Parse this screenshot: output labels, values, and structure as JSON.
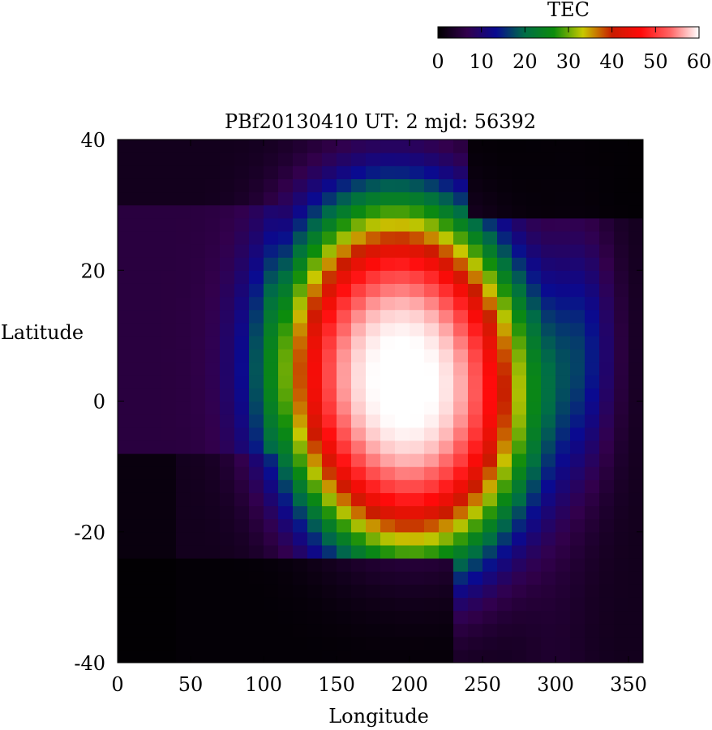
{
  "chart_data": {
    "type": "heatmap",
    "title": "PBf20130410  UT: 2  mjd: 56392",
    "xlabel": "Longitude",
    "ylabel": "Latitude",
    "xlim": [
      0,
      360
    ],
    "ylim": [
      -40,
      40
    ],
    "x_ticks": [
      0,
      50,
      100,
      150,
      200,
      250,
      300,
      350
    ],
    "y_ticks": [
      -40,
      -20,
      0,
      20,
      40
    ],
    "colorbar": {
      "label": "TEC",
      "range": [
        0,
        60
      ],
      "ticks": [
        0,
        10,
        20,
        30,
        40,
        50,
        60
      ],
      "colors": [
        "#000000",
        "#32004c",
        "#0a0a90",
        "#006e46",
        "#0c8c0c",
        "#c8c800",
        "#c81c00",
        "#ff0a0a",
        "#ff6464",
        "#ffffff"
      ]
    },
    "grid": {
      "lon_step": 10,
      "lat_step": 2
    },
    "tec_features": [
      {
        "feature": "equatorial anomaly peak",
        "lon_range": [
          165,
          255
        ],
        "lat_range": [
          -13,
          17
        ],
        "tec": 60
      },
      {
        "feature": "red envelope",
        "lon_range": [
          145,
          270
        ],
        "lat_range": [
          -16,
          22
        ],
        "tec": 48
      },
      {
        "feature": "green/yellow band",
        "lon_range": [
          120,
          290
        ],
        "lat_range": [
          -22,
          29
        ],
        "tec": 30
      },
      {
        "feature": "blue band",
        "lon_range": [
          85,
          320
        ],
        "lat_range": [
          -32,
          36
        ],
        "tec": 15
      },
      {
        "feature": "night-side low",
        "lon_range": [
          0,
          80
        ],
        "lat_range": [
          -40,
          40
        ],
        "tec": 2
      }
    ]
  }
}
